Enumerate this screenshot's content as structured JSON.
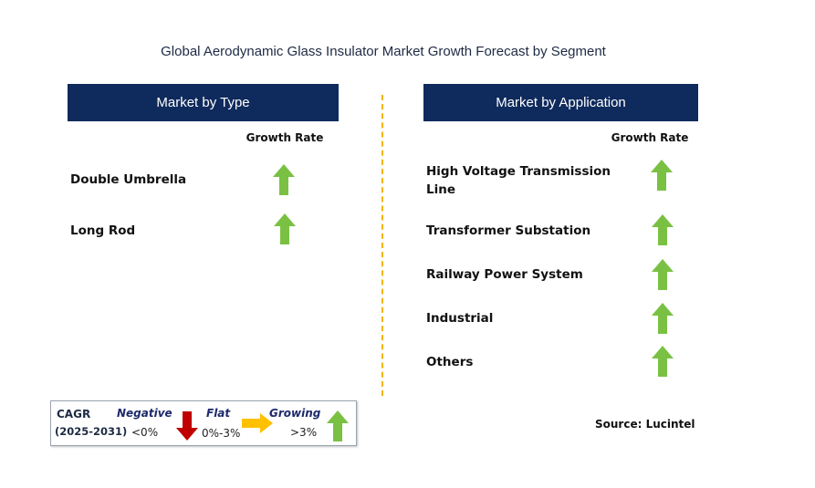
{
  "title": "Global Aerodynamic Glass Insulator Market Growth Forecast by Segment",
  "type_panel": {
    "header": "Market by Type",
    "growth_label": "Growth Rate",
    "items": [
      {
        "label": "Double Umbrella",
        "trend": "growing"
      },
      {
        "label": "Long Rod",
        "trend": "growing"
      }
    ]
  },
  "application_panel": {
    "header": "Market by Application",
    "growth_label": "Growth Rate",
    "items": [
      {
        "label": "High Voltage Transmission Line",
        "line1": "High Voltage Transmission",
        "line2": "Line",
        "trend": "growing"
      },
      {
        "label": "Transformer Substation",
        "trend": "growing"
      },
      {
        "label": "Railway Power System",
        "trend": "growing"
      },
      {
        "label": "Industrial",
        "trend": "growing"
      },
      {
        "label": "Others",
        "trend": "growing"
      }
    ]
  },
  "legend": {
    "cagr": "CAGR",
    "years": "(2025-2031)",
    "negative": {
      "label": "Negative",
      "range": "<0%",
      "color": "#c00000",
      "icon": "down-arrow-icon"
    },
    "flat": {
      "label": "Flat",
      "range": "0%-3%",
      "color": "#ffc000",
      "icon": "right-arrow-icon"
    },
    "growing": {
      "label": "Growing",
      "range": ">3%",
      "color": "#7ac143",
      "icon": "up-arrow-icon"
    }
  },
  "source": "Source: Lucintel"
}
